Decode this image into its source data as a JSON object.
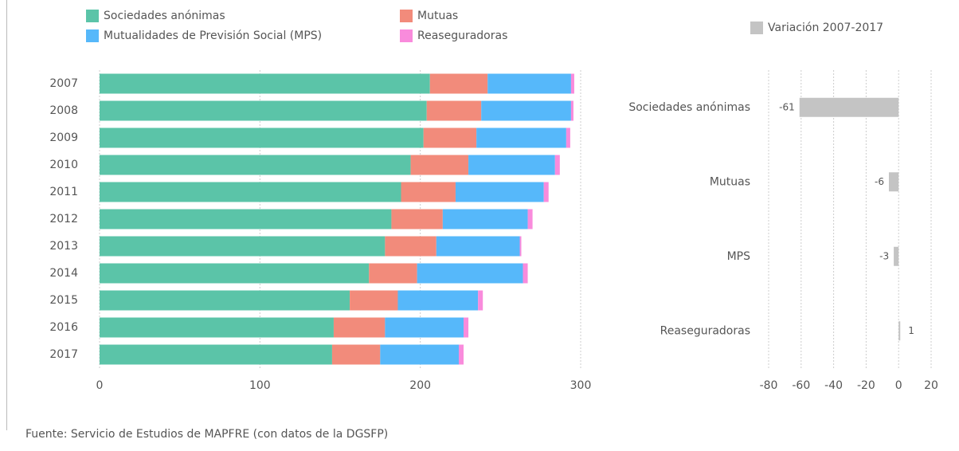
{
  "chart_data": [
    {
      "type": "bar",
      "orientation": "horizontal",
      "stacked": true,
      "categories": [
        "2007",
        "2008",
        "2009",
        "2010",
        "2011",
        "2012",
        "2013",
        "2014",
        "2015",
        "2016",
        "2017"
      ],
      "series": [
        {
          "name": "Sociedades anónimas",
          "color": "#5bc4a8",
          "values": [
            206,
            204,
            202,
            194,
            188,
            182,
            178,
            168,
            156,
            146,
            145
          ]
        },
        {
          "name": "Mutuas",
          "color": "#f28b7b",
          "values": [
            36,
            34,
            33,
            36,
            34,
            32,
            32,
            30,
            30,
            32,
            30
          ]
        },
        {
          "name": "Mutualidades de Previsión Social (MPS)",
          "color": "#56b8fa",
          "values": [
            52,
            56,
            56,
            54,
            55,
            53,
            52,
            66,
            50,
            49,
            49
          ]
        },
        {
          "name": "Reaseguradoras",
          "color": "#f98bdc",
          "values": [
            2,
            1.5,
            2.5,
            3,
            3,
            3,
            1,
            3,
            3,
            3,
            3
          ]
        }
      ],
      "xlim": [
        0,
        300
      ],
      "xticks": [
        0,
        100,
        200,
        300
      ],
      "grid": true
    },
    {
      "type": "bar",
      "orientation": "horizontal",
      "stacked": false,
      "categories": [
        "Sociedades anónimas",
        "Mutuas",
        "MPS",
        "Reaseguradoras"
      ],
      "series": [
        {
          "name": "Variación 2007-2017",
          "color": "#c4c4c4",
          "values": [
            -61,
            -6,
            -3,
            1
          ]
        }
      ],
      "xlim": [
        -80,
        20
      ],
      "xticks": [
        -80,
        -60,
        -40,
        -20,
        0,
        20
      ],
      "grid": true
    }
  ],
  "source": "Fuente: Servicio de Estudios de MAPFRE (con datos de la DGSFP)"
}
